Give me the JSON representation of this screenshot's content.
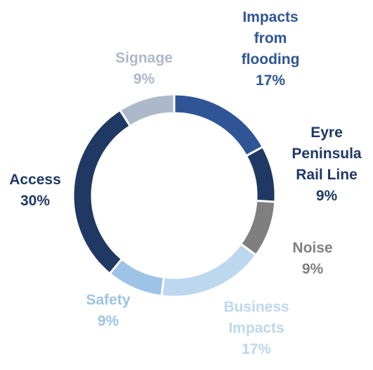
{
  "chart_data": {
    "type": "pie",
    "donut": true,
    "title": "",
    "slices": [
      {
        "label_lines": [
          "Impacts",
          "from",
          "flooding"
        ],
        "value": 17,
        "value_label": "17%",
        "color": "#2F5597"
      },
      {
        "label_lines": [
          "Eyre",
          "Peninsula",
          "Rail Line"
        ],
        "value": 9,
        "value_label": "9%",
        "color": "#1F3864"
      },
      {
        "label_lines": [
          "Noise"
        ],
        "value": 9,
        "value_label": "9%",
        "color": "#7F7F7F"
      },
      {
        "label_lines": [
          "Business",
          "Impacts"
        ],
        "value": 17,
        "value_label": "17%",
        "color": "#BDD7EE"
      },
      {
        "label_lines": [
          "Safety"
        ],
        "value": 9,
        "value_label": "9%",
        "color": "#9DC3E6"
      },
      {
        "label_lines": [
          "Access"
        ],
        "value": 30,
        "value_label": "30%",
        "color": "#1F3864"
      },
      {
        "label_lines": [
          "Signage"
        ],
        "value": 9,
        "value_label": "9%",
        "color": "#ADB9CA"
      }
    ]
  }
}
